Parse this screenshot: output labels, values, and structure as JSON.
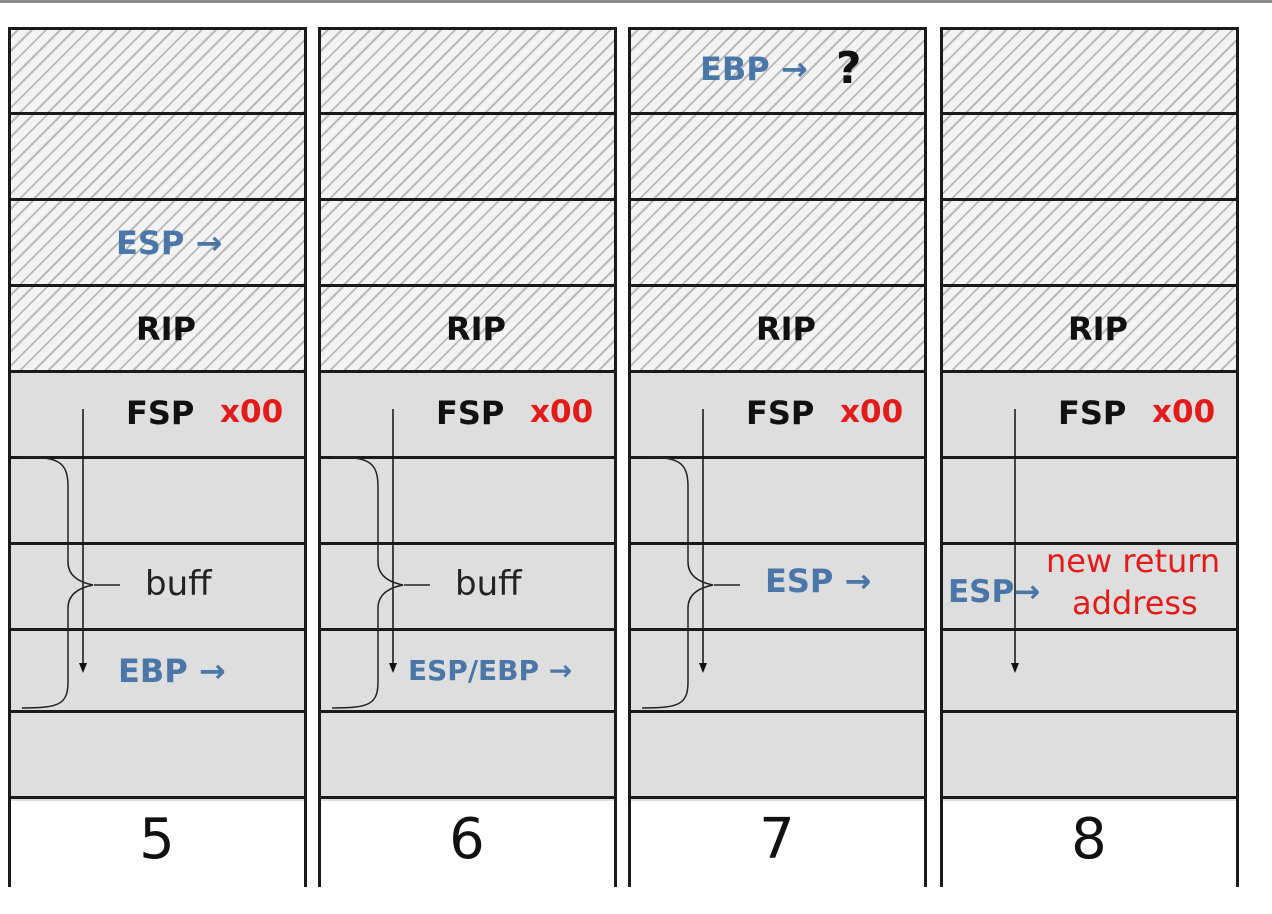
{
  "columns": [
    {
      "number": "5",
      "top_labels": {
        "row3": "ESP →"
      },
      "rip": "RIP",
      "fsp": "FSP",
      "x00": "x00",
      "brace_label": "buff",
      "row8_label": "EBP →"
    },
    {
      "number": "6",
      "rip": "RIP",
      "fsp": "FSP",
      "x00": "x00",
      "brace_label": "buff",
      "row8_label": "ESP/EBP →"
    },
    {
      "number": "7",
      "top_labels": {
        "row1_reg": "EBP →",
        "row1_q": "?"
      },
      "rip": "RIP",
      "fsp": "FSP",
      "x00": "x00",
      "brace_label": "ESP →"
    },
    {
      "number": "8",
      "rip": "RIP",
      "fsp": "FSP",
      "x00": "x00",
      "esp_label": "ESP→",
      "new_return_line1": "new return",
      "new_return_line2": "address"
    }
  ],
  "colors": {
    "register": "#4a76a8",
    "marker": "#e31b1b",
    "hatch_stroke": "#b9b9b9",
    "stack_fill": "#dedede"
  }
}
